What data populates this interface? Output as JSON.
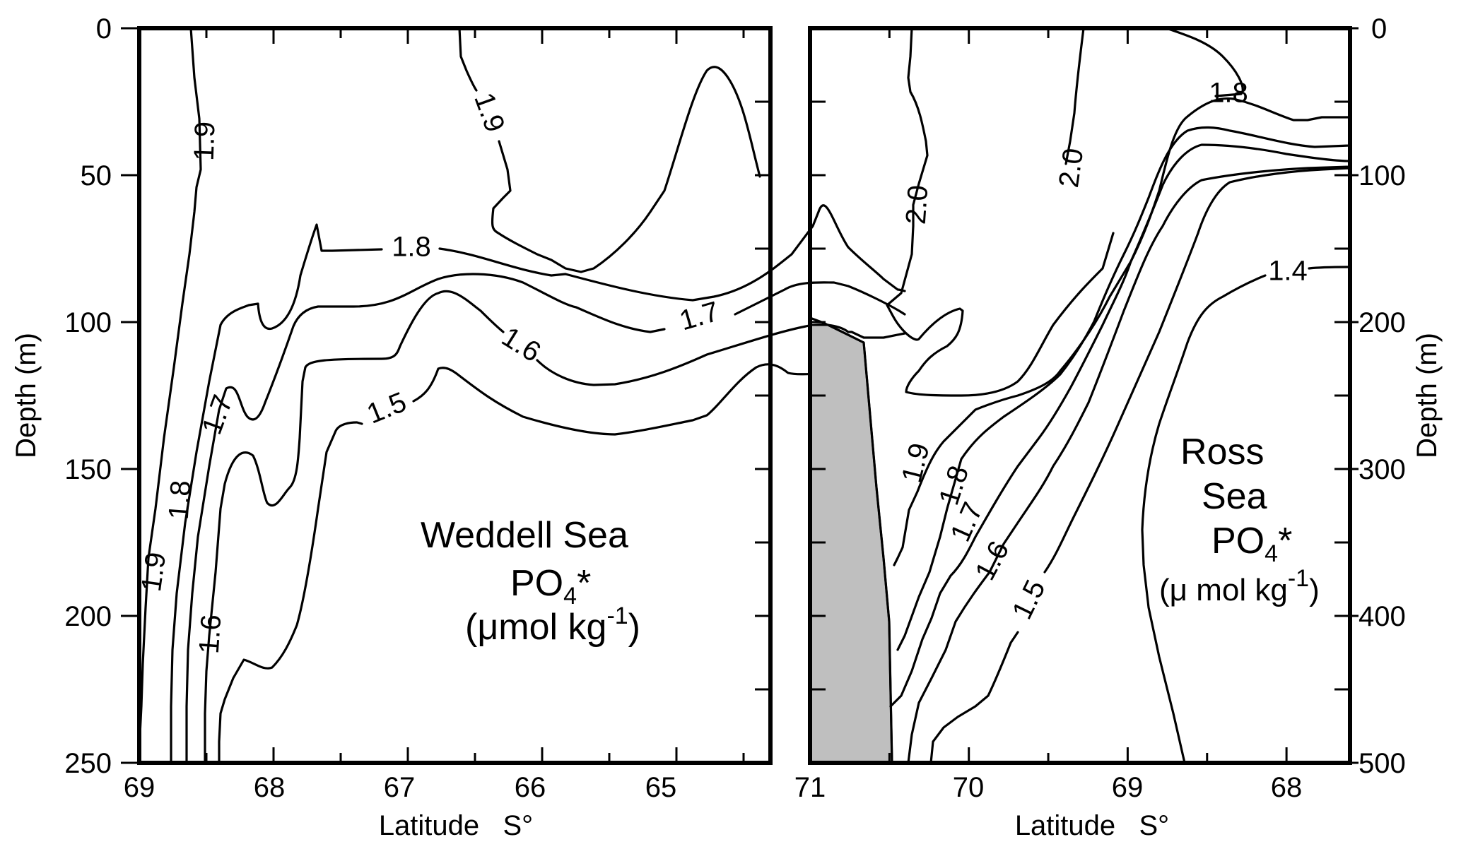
{
  "chart_data": [
    {
      "type": "contour",
      "panel": "left",
      "region": "Weddell Sea",
      "annotation": {
        "line1": "Weddell Sea",
        "line2_main": "PO",
        "line2_sub": "4",
        "line2_star": "*",
        "line3_main": "(μmol kg",
        "line3_sup": "-1",
        "line3_end": ")"
      },
      "xlabel": "Latitude   S°",
      "ylabel": "Depth (m)",
      "xlim": [
        69,
        64.3
      ],
      "ylim": [
        0,
        250
      ],
      "xticks": [
        "69",
        "68",
        "67",
        "66",
        "65"
      ],
      "yticks": [
        "0",
        "50",
        "100",
        "150",
        "200",
        "250"
      ],
      "contour_levels": [
        "1.9",
        "1.9",
        "1.8",
        "1.8",
        "1.7",
        "1.7",
        "1.6",
        "1.6",
        "1.5"
      ]
    },
    {
      "type": "contour",
      "panel": "right",
      "region": "Ross Sea",
      "annotation": {
        "line1": "Ross",
        "line2": "Sea",
        "line3_main": "PO",
        "line3_sub": "4",
        "line3_star": "*",
        "line4_main": "(μ mol kg",
        "line4_sup": "-1",
        "line4_end": ")"
      },
      "xlabel": "Latitude   S°",
      "ylabel": "Depth (m)",
      "xlim": [
        71,
        67.6
      ],
      "ylim": [
        0,
        500
      ],
      "xticks": [
        "71",
        "70",
        "69",
        "68"
      ],
      "yticks": [
        "0",
        "100",
        "200",
        "300",
        "400",
        "500"
      ],
      "contour_levels": [
        "1.8",
        "2.0",
        "2.0",
        "1.9",
        "1.8",
        "1.7",
        "1.6",
        "1.5",
        "1.4"
      ]
    }
  ]
}
